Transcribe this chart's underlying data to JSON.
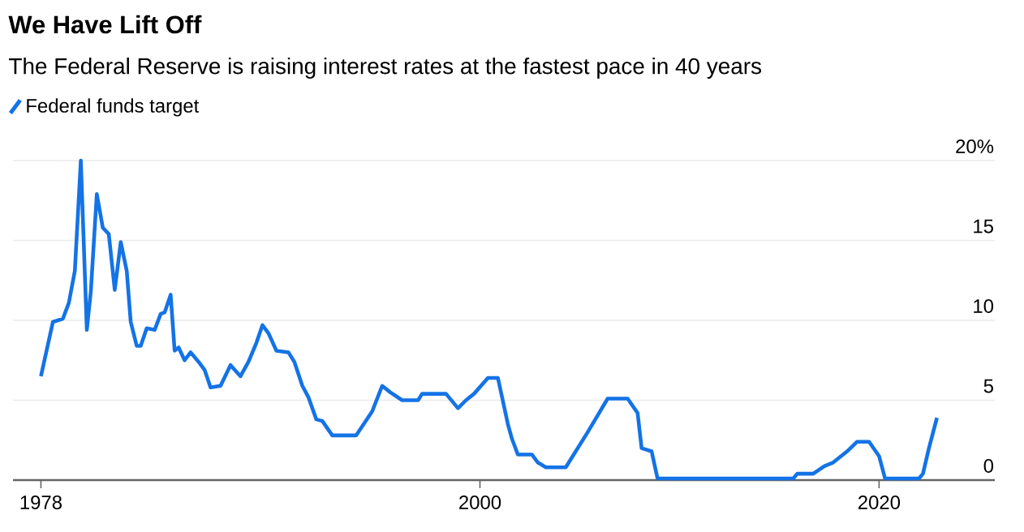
{
  "chart_data": {
    "type": "line",
    "title": "We Have Lift Off",
    "subtitle": "The Federal Reserve is raising interest rates at the fastest pace in 40 years",
    "series": [
      {
        "name": "Federal funds target",
        "color": "#1473e6",
        "x": [
          1978.0,
          1978.6,
          1979.1,
          1979.4,
          1979.7,
          1980.0,
          1980.3,
          1980.5,
          1980.8,
          1981.1,
          1981.4,
          1981.7,
          1982.0,
          1982.3,
          1982.5,
          1982.8,
          1983.0,
          1983.3,
          1983.7,
          1984.0,
          1984.2,
          1984.5,
          1984.7,
          1984.9,
          1985.2,
          1985.5,
          1985.9,
          1986.2,
          1986.5,
          1987.0,
          1987.5,
          1988.0,
          1988.4,
          1988.8,
          1989.1,
          1989.4,
          1989.8,
          1990.4,
          1990.7,
          1991.1,
          1991.4,
          1991.8,
          1992.1,
          1992.6,
          1993.8,
          1994.6,
          1995.1,
          1995.5,
          1996.1,
          1996.9,
          1997.1,
          1998.3,
          1998.9,
          1999.3,
          1999.7,
          2000.4,
          2000.9,
          2001.4,
          2001.6,
          2001.9,
          2002.6,
          2002.9,
          2003.3,
          2004.3,
          2005.4,
          2006.4,
          2007.4,
          2007.9,
          2008.1,
          2008.6,
          2008.9,
          2015.7,
          2015.9,
          2016.7,
          2017.3,
          2017.7,
          2018.4,
          2018.9,
          2019.5,
          2020.0,
          2020.3,
          2022.0,
          2022.2,
          2022.5,
          2022.9
        ],
        "values": [
          6.5,
          9.9,
          10.1,
          11.1,
          13.1,
          20.0,
          9.4,
          11.8,
          17.9,
          15.8,
          15.4,
          11.9,
          14.9,
          13.1,
          9.9,
          8.4,
          8.4,
          9.5,
          9.4,
          10.4,
          10.5,
          11.6,
          8.1,
          8.3,
          7.5,
          8.0,
          7.4,
          6.9,
          5.8,
          5.9,
          7.2,
          6.5,
          7.4,
          8.6,
          9.7,
          9.2,
          8.1,
          8.0,
          7.4,
          5.9,
          5.2,
          3.8,
          3.7,
          2.8,
          2.8,
          4.3,
          5.9,
          5.5,
          5.0,
          5.0,
          5.4,
          5.4,
          4.5,
          5.0,
          5.4,
          6.4,
          6.4,
          3.5,
          2.6,
          1.6,
          1.6,
          1.1,
          0.8,
          0.8,
          3.0,
          5.1,
          5.1,
          4.2,
          2.0,
          1.8,
          0.1,
          0.1,
          0.4,
          0.4,
          0.9,
          1.1,
          1.8,
          2.4,
          2.4,
          1.5,
          0.1,
          0.1,
          0.4,
          2.0,
          3.9
        ]
      }
    ],
    "xlim": [
      1976.6,
      2025.8
    ],
    "xticks": [
      1978,
      2000,
      2020
    ],
    "ylim": [
      0,
      20
    ],
    "yticks": [
      0,
      5,
      10,
      15,
      {
        "value": 20,
        "label": "20%"
      }
    ],
    "grid": "y",
    "legend": "top left"
  }
}
